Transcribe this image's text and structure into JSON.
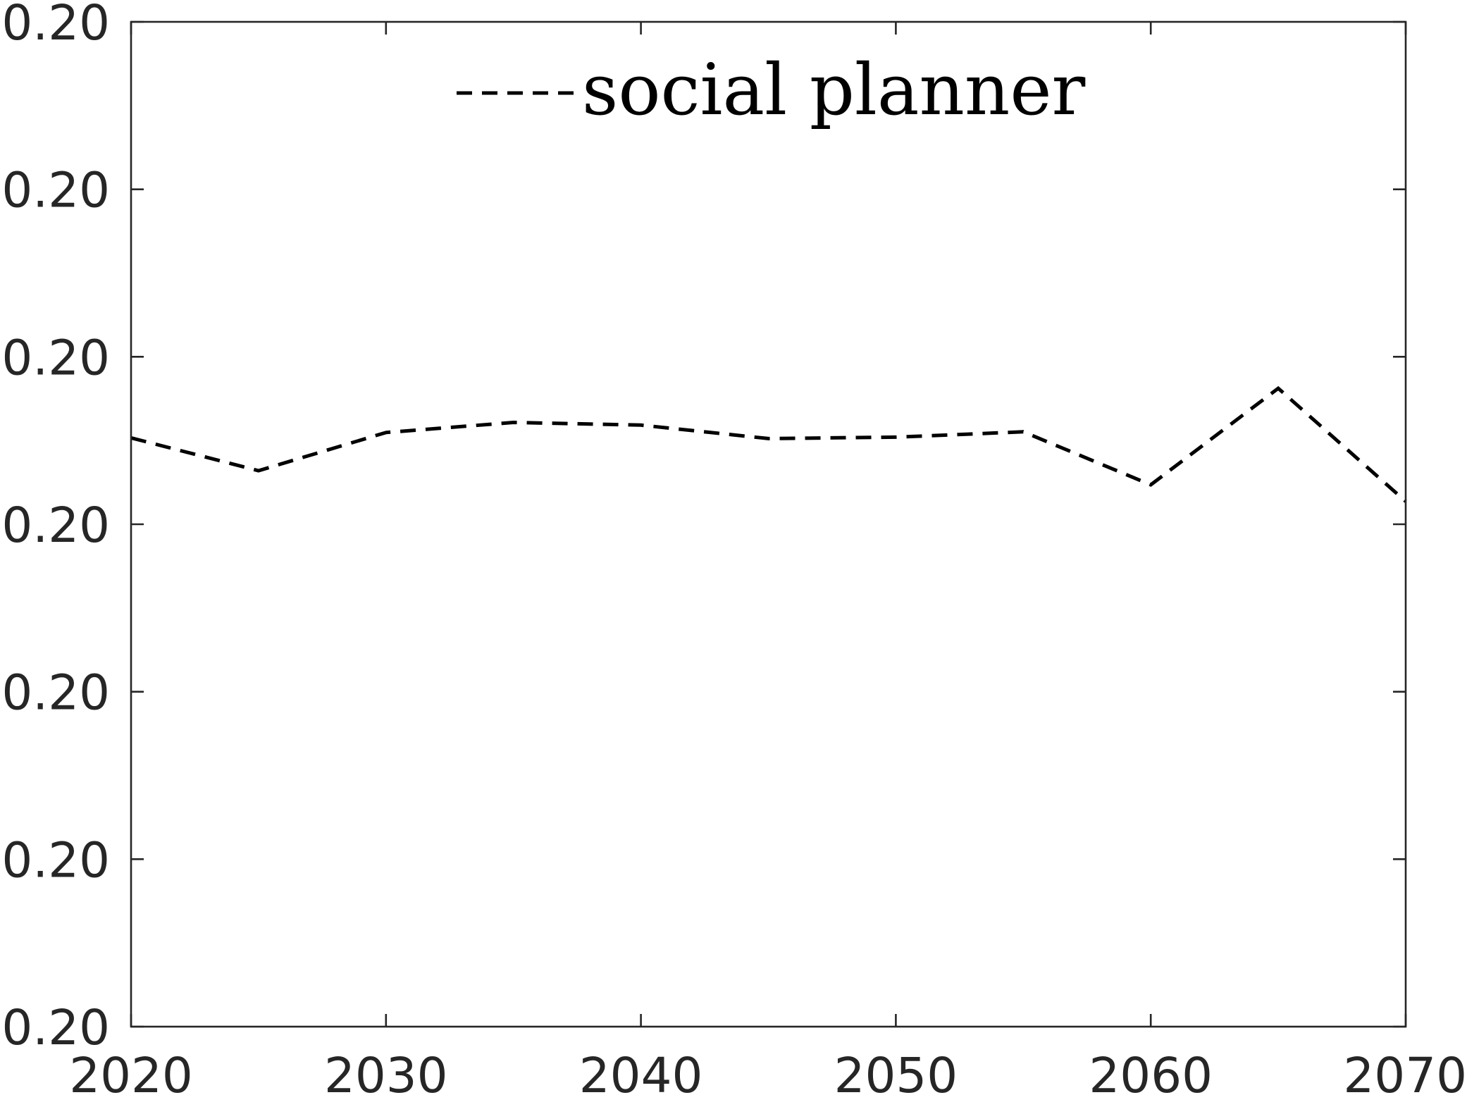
{
  "chart_data": {
    "type": "line",
    "title": "",
    "xlabel": "",
    "ylabel": "",
    "x": [
      2020,
      2025,
      2030,
      2035,
      2040,
      2045,
      2050,
      2055,
      2060,
      2065,
      2070
    ],
    "series": [
      {
        "name": "social planner",
        "values": [
          0.586,
          0.5533,
          0.5913,
          0.6013,
          0.5987,
          0.5853,
          0.5867,
          0.592,
          0.5393,
          0.6353,
          0.5227
        ],
        "style": "dashed",
        "color": "#000000"
      }
    ],
    "xlim": [
      2020,
      2070
    ],
    "ylim": [
      0,
      1
    ],
    "xticks": [
      "2020",
      "2030",
      "2040",
      "2050",
      "2060",
      "2070"
    ],
    "yticks": [
      "0.20",
      "0.20",
      "0.20",
      "0.20",
      "0.20",
      "0.20",
      "0.20"
    ],
    "grid": false,
    "legend_position": "top"
  }
}
